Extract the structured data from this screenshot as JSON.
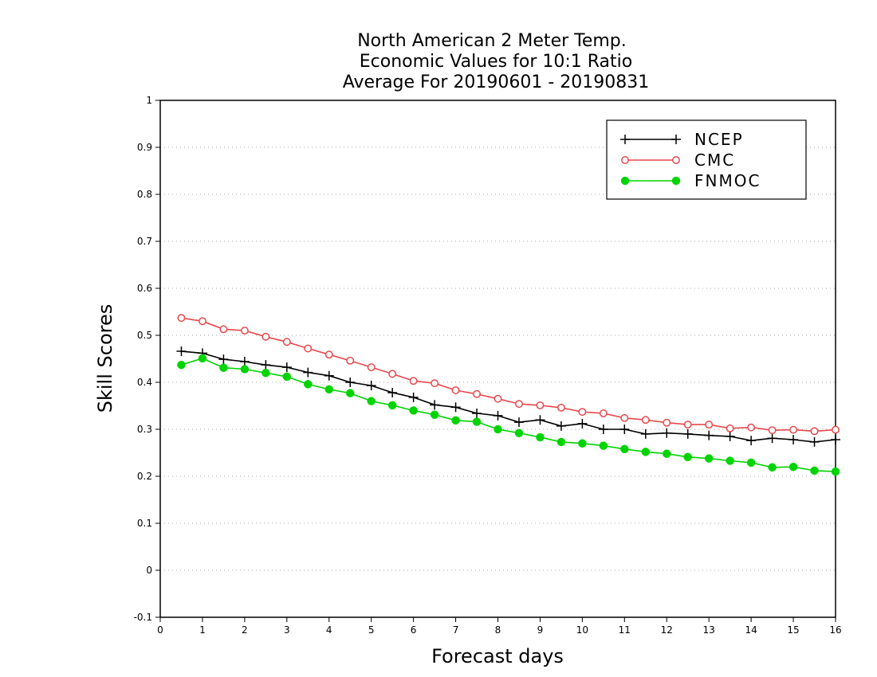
{
  "chart_data": {
    "type": "line",
    "title_lines": [
      "North American 2 Meter Temp.",
      "Economic Values for 10:1 Ratio",
      "Average For 20190601 - 20190831"
    ],
    "xlabel": "Forecast days",
    "ylabel": "Skill Scores",
    "xlim": [
      0,
      16
    ],
    "ylim": [
      -0.1,
      1
    ],
    "x_ticks": [
      0,
      1,
      2,
      3,
      4,
      5,
      6,
      7,
      8,
      9,
      10,
      11,
      12,
      13,
      14,
      15,
      16
    ],
    "x_tick_labels": [
      "0",
      "1",
      "2",
      "3",
      "4",
      "5",
      "6",
      "7",
      "8",
      "9",
      "10",
      "11",
      "12",
      "13",
      "14",
      "15",
      "16"
    ],
    "y_ticks": [
      -0.1,
      0,
      0.1,
      0.2,
      0.3,
      0.4,
      0.5,
      0.6,
      0.7,
      0.8,
      0.9,
      1
    ],
    "y_tick_labels": [
      "-0.1",
      "0",
      "0.1",
      "0.2",
      "0.3",
      "0.4",
      "0.5",
      "0.6",
      "0.7",
      "0.8",
      "0.9",
      "1"
    ],
    "grid": "horizontal dotted",
    "legend_position": "top-right",
    "x": [
      0.5,
      1,
      1.5,
      2,
      2.5,
      3,
      3.5,
      4,
      4.5,
      5,
      5.5,
      6,
      6.5,
      7,
      7.5,
      8,
      8.5,
      9,
      9.5,
      10,
      10.5,
      11,
      11.5,
      12,
      12.5,
      13,
      13.5,
      14,
      14.5,
      15,
      15.5,
      16
    ],
    "series": [
      {
        "name": "NCEP",
        "color": "#000000",
        "marker": "plus",
        "values": [
          0.466,
          0.462,
          0.449,
          0.444,
          0.437,
          0.432,
          0.421,
          0.414,
          0.4,
          0.393,
          0.378,
          0.368,
          0.352,
          0.347,
          0.334,
          0.329,
          0.315,
          0.32,
          0.307,
          0.312,
          0.3,
          0.3,
          0.29,
          0.292,
          0.29,
          0.287,
          0.285,
          0.276,
          0.281,
          0.278,
          0.273,
          0.278
        ]
      },
      {
        "name": "CMC",
        "color": "#e8484c",
        "marker": "open-circle",
        "values": [
          0.537,
          0.53,
          0.513,
          0.51,
          0.497,
          0.486,
          0.472,
          0.459,
          0.446,
          0.432,
          0.418,
          0.403,
          0.398,
          0.383,
          0.375,
          0.365,
          0.354,
          0.351,
          0.346,
          0.337,
          0.334,
          0.324,
          0.32,
          0.314,
          0.31,
          0.31,
          0.302,
          0.304,
          0.298,
          0.299,
          0.296,
          0.299
        ]
      },
      {
        "name": "FNMOC",
        "color": "#00d400",
        "marker": "filled-circle",
        "values": [
          0.437,
          0.451,
          0.431,
          0.428,
          0.42,
          0.412,
          0.396,
          0.385,
          0.377,
          0.36,
          0.351,
          0.34,
          0.331,
          0.319,
          0.316,
          0.3,
          0.292,
          0.283,
          0.273,
          0.27,
          0.265,
          0.258,
          0.252,
          0.248,
          0.241,
          0.238,
          0.233,
          0.229,
          0.219,
          0.22,
          0.212,
          0.21
        ]
      }
    ]
  }
}
